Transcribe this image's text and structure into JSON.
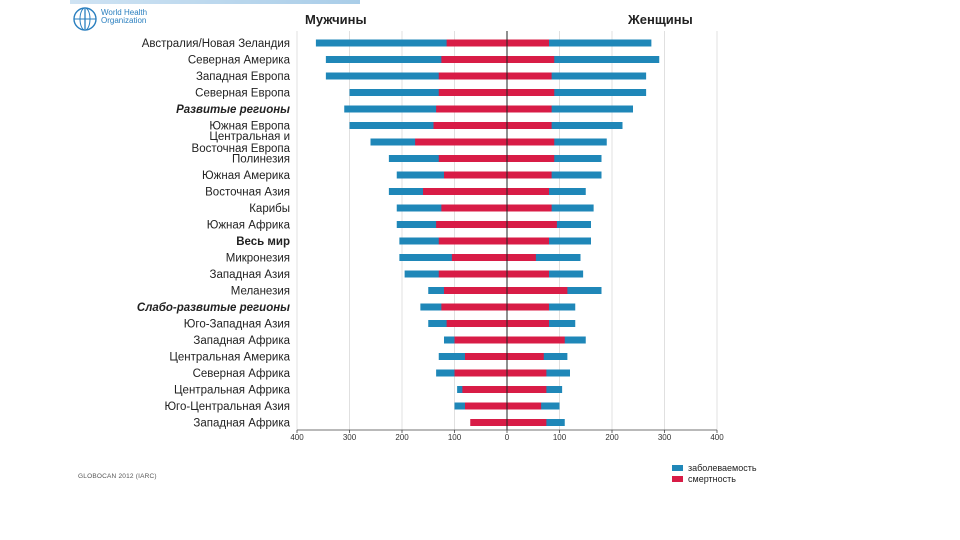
{
  "header": {
    "logo_text": "World Health Organization",
    "men_title": "Мужчины",
    "women_title": "Женщины"
  },
  "chart_data": {
    "type": "bar",
    "orientation": "horizontal-diverging",
    "categories": [
      {
        "label": "Австралия/Новая Зеландия",
        "style": "normal"
      },
      {
        "label": "Северная Америка",
        "style": "normal"
      },
      {
        "label": "Западная Европа",
        "style": "normal"
      },
      {
        "label": "Северная Европа",
        "style": "normal"
      },
      {
        "label": "Развитые регионы",
        "style": "bold-italic"
      },
      {
        "label": "Южная Европа",
        "style": "normal"
      },
      {
        "label": "Центральная и\nВосточная Европа",
        "style": "normal"
      },
      {
        "label": "Полинезия",
        "style": "normal"
      },
      {
        "label": "Южная Америка",
        "style": "normal"
      },
      {
        "label": "Восточная Азия",
        "style": "normal"
      },
      {
        "label": "Карибы",
        "style": "normal"
      },
      {
        "label": "Южная Африка",
        "style": "normal"
      },
      {
        "label": "Весь мир",
        "style": "bold"
      },
      {
        "label": "Микронезия",
        "style": "normal"
      },
      {
        "label": "Западная Азия",
        "style": "normal"
      },
      {
        "label": "Меланезия",
        "style": "normal"
      },
      {
        "label": "Слабо-развитые регионы",
        "style": "bold-italic"
      },
      {
        "label": "Юго-Западная Азия",
        "style": "normal"
      },
      {
        "label": "Западная Африка",
        "style": "normal"
      },
      {
        "label": "Центральная Америка",
        "style": "normal"
      },
      {
        "label": "Северная Африка",
        "style": "normal"
      },
      {
        "label": "Центральная Африка",
        "style": "normal"
      },
      {
        "label": "Юго-Центральная Азия",
        "style": "normal"
      },
      {
        "label": "Западная Африка",
        "style": "normal"
      }
    ],
    "series": [
      {
        "name": "заболеваемость",
        "color": "#1f87b8",
        "men": [
          364,
          345,
          345,
          300,
          310,
          300,
          260,
          225,
          210,
          225,
          210,
          210,
          205,
          205,
          195,
          150,
          165,
          150,
          120,
          130,
          135,
          95,
          100,
          60
        ],
        "women": [
          275,
          290,
          265,
          265,
          240,
          220,
          190,
          180,
          180,
          150,
          165,
          160,
          160,
          140,
          145,
          180,
          130,
          130,
          150,
          115,
          120,
          105,
          100,
          110
        ]
      },
      {
        "name": "смертность",
        "color": "#d81c46",
        "men": [
          115,
          125,
          130,
          130,
          135,
          140,
          175,
          130,
          120,
          160,
          125,
          135,
          130,
          105,
          130,
          120,
          125,
          115,
          100,
          80,
          100,
          85,
          80,
          70
        ],
        "women": [
          80,
          90,
          85,
          90,
          85,
          85,
          90,
          90,
          85,
          80,
          85,
          95,
          80,
          55,
          80,
          115,
          80,
          80,
          110,
          70,
          75,
          75,
          65,
          75
        ]
      }
    ],
    "x_axis": {
      "ticks": [
        400,
        300,
        200,
        100,
        0,
        100,
        200,
        300,
        400
      ],
      "range": [
        -400,
        400
      ]
    },
    "grid": "vertical",
    "legend": {
      "position": "bottom-right"
    },
    "source": "GLOBOCAN 2012 (IARC)"
  }
}
